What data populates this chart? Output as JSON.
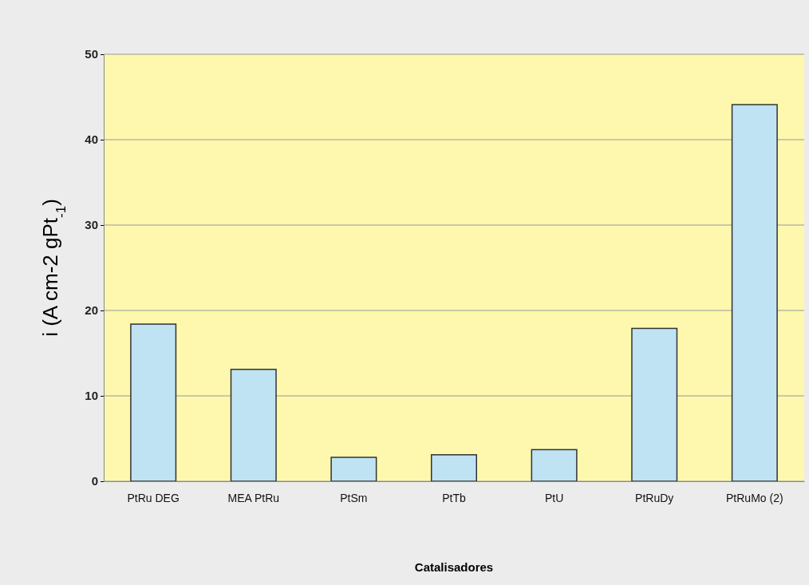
{
  "chart_data": {
    "type": "bar",
    "xlabel": "Catalisadores",
    "ylabel": "i (A cm-2 gPt$_{-1}$)",
    "categories": [
      "PtRu DEG",
      "MEA PtRu",
      "PtSm",
      "PtTb",
      "PtU",
      "PtRuDy",
      "PtRuMo (2)"
    ],
    "values": [
      18.4,
      13.1,
      2.8,
      3.1,
      3.7,
      17.9,
      44.1
    ],
    "color": "#bfe3f3",
    "ylim": [
      0,
      50
    ],
    "yticks": [
      0,
      10,
      20,
      30,
      40,
      50
    ],
    "grid": "y"
  }
}
